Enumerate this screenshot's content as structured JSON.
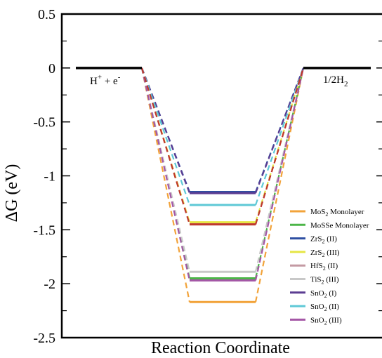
{
  "chart_data": {
    "type": "line",
    "xlabel": "Reaction Coordinate",
    "ylabel": "ΔG (eV)",
    "ylim": [
      -2.5,
      0.5
    ],
    "y_ticks": [
      {
        "value": 0.5,
        "label": "0.5"
      },
      {
        "value": 0,
        "label": "0"
      },
      {
        "value": -0.5,
        "label": "-0.5"
      },
      {
        "value": -1,
        "label": "-1"
      },
      {
        "value": -1.5,
        "label": "-1.5"
      },
      {
        "value": -2,
        "label": "-2"
      },
      {
        "value": -2.5,
        "label": "-2.5"
      }
    ],
    "states": [
      {
        "base": "H",
        "sup": "+",
        "mid": " + e",
        "sup2": "-",
        "sub": ""
      },
      {
        "base": "",
        "sup": "",
        "mid": "",
        "sup2": "",
        "sub": ""
      },
      {
        "base": "1/2H",
        "sup": "",
        "mid": "",
        "sup2": "",
        "sub": "2"
      }
    ],
    "state_levels": {
      "initial": 0,
      "final": 0
    },
    "legend_position": "bottom-right",
    "grid": false,
    "series": [
      {
        "name_base": "MoS",
        "name_sub": "2",
        "name_rest": " Monolayer",
        "color": "#f2a33a",
        "value": -2.17
      },
      {
        "name_base": "MoSSe Monolayer",
        "name_sub": "",
        "name_rest": "",
        "color": "#4cb548",
        "value": -1.95
      },
      {
        "name_base": "ZrS",
        "name_sub": "2",
        "name_rest": " (II)",
        "color": "#2e4fa2",
        "value": -1.15
      },
      {
        "name_base": "ZrS",
        "name_sub": "2",
        "name_rest": " (III)",
        "color": "#e6e645",
        "value": -1.43
      },
      {
        "name_base": "HfS",
        "name_sub": "2",
        "name_rest": " (II)",
        "color": "#c49aa3",
        "value": -1.45
      },
      {
        "name_base": "TiS",
        "name_sub": "2",
        "name_rest": " (III)",
        "color": "#c8c8c8",
        "value": -1.89
      },
      {
        "name_base": "SnO",
        "name_sub": "2",
        "name_rest": " (I)",
        "color": "#5b3d92",
        "value": -1.16
      },
      {
        "name_base": "SnO",
        "name_sub": "2",
        "name_rest": " (II)",
        "color": "#5ec8d6",
        "value": -1.27
      },
      {
        "name_base": "SnO",
        "name_sub": "2",
        "name_rest": " (III)",
        "color": "#a457a6",
        "value": -1.97
      },
      {
        "name_base": "",
        "name_sub": "",
        "name_rest": "",
        "color": "#c0392b",
        "value": -1.45
      }
    ]
  }
}
